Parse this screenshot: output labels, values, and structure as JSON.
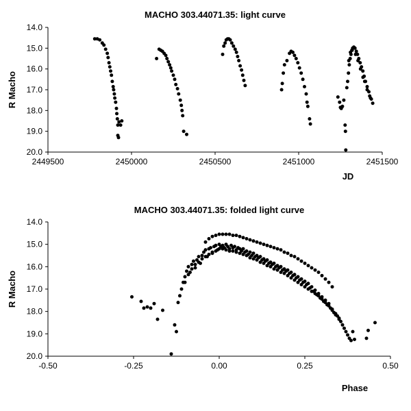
{
  "chart_data": [
    {
      "type": "scatter",
      "title": "MACHO 303.44071.35: light curve",
      "xlabel": "JD",
      "ylabel": "R Macho",
      "xlim": [
        2449500,
        2451500
      ],
      "ylim": [
        14.0,
        20.0
      ],
      "y_inverted": true,
      "x_ticks": [
        "2449500",
        "2450000",
        "2450500",
        "2451000",
        "2451500"
      ],
      "y_ticks": [
        "14.0",
        "15.0",
        "16.0",
        "17.0",
        "18.0",
        "19.0",
        "20.0"
      ],
      "grid": false,
      "legend": "none",
      "marker_color": "#000000",
      "points": [
        [
          2449780,
          14.55
        ],
        [
          2449795,
          14.55
        ],
        [
          2449810,
          14.6
        ],
        [
          2449825,
          14.75
        ],
        [
          2449835,
          14.85
        ],
        [
          2449845,
          15.05
        ],
        [
          2449855,
          15.25
        ],
        [
          2449860,
          15.45
        ],
        [
          2449865,
          15.7
        ],
        [
          2449870,
          15.9
        ],
        [
          2449875,
          16.1
        ],
        [
          2449880,
          16.3
        ],
        [
          2449885,
          16.6
        ],
        [
          2449890,
          16.85
        ],
        [
          2449893,
          17.0
        ],
        [
          2449897,
          17.2
        ],
        [
          2449900,
          17.4
        ],
        [
          2449905,
          17.6
        ],
        [
          2449910,
          17.9
        ],
        [
          2449912,
          18.15
        ],
        [
          2449915,
          18.4
        ],
        [
          2449918,
          18.7
        ],
        [
          2449925,
          18.55
        ],
        [
          2449935,
          18.7
        ],
        [
          2449942,
          18.5
        ],
        [
          2449918,
          19.2
        ],
        [
          2449922,
          19.3
        ],
        [
          2450150,
          15.5
        ],
        [
          2450165,
          15.05
        ],
        [
          2450175,
          15.1
        ],
        [
          2450185,
          15.15
        ],
        [
          2450195,
          15.25
        ],
        [
          2450205,
          15.35
        ],
        [
          2450212,
          15.5
        ],
        [
          2450220,
          15.65
        ],
        [
          2450228,
          15.8
        ],
        [
          2450235,
          15.95
        ],
        [
          2450240,
          16.1
        ],
        [
          2450250,
          16.3
        ],
        [
          2450258,
          16.5
        ],
        [
          2450265,
          16.75
        ],
        [
          2450275,
          16.95
        ],
        [
          2450282,
          17.2
        ],
        [
          2450292,
          17.5
        ],
        [
          2450298,
          17.75
        ],
        [
          2450302,
          18.0
        ],
        [
          2450306,
          18.25
        ],
        [
          2450312,
          19.0
        ],
        [
          2450330,
          19.15
        ],
        [
          2450545,
          15.3
        ],
        [
          2450552,
          14.9
        ],
        [
          2450560,
          14.75
        ],
        [
          2450567,
          14.6
        ],
        [
          2450575,
          14.55
        ],
        [
          2450582,
          14.55
        ],
        [
          2450590,
          14.6
        ],
        [
          2450600,
          14.75
        ],
        [
          2450610,
          14.9
        ],
        [
          2450620,
          15.05
        ],
        [
          2450628,
          15.2
        ],
        [
          2450635,
          15.4
        ],
        [
          2450642,
          15.6
        ],
        [
          2450650,
          15.85
        ],
        [
          2450658,
          16.05
        ],
        [
          2450665,
          16.3
        ],
        [
          2450672,
          16.55
        ],
        [
          2450680,
          16.8
        ],
        [
          2450898,
          17.0
        ],
        [
          2450902,
          16.7
        ],
        [
          2450908,
          16.2
        ],
        [
          2450915,
          15.8
        ],
        [
          2450930,
          15.6
        ],
        [
          2450945,
          15.25
        ],
        [
          2450955,
          15.15
        ],
        [
          2450965,
          15.2
        ],
        [
          2450975,
          15.35
        ],
        [
          2450985,
          15.5
        ],
        [
          2450995,
          15.7
        ],
        [
          2451005,
          15.95
        ],
        [
          2451015,
          16.2
        ],
        [
          2451025,
          16.5
        ],
        [
          2451035,
          16.85
        ],
        [
          2451045,
          17.2
        ],
        [
          2451050,
          17.6
        ],
        [
          2451055,
          17.8
        ],
        [
          2451065,
          18.4
        ],
        [
          2451070,
          18.65
        ],
        [
          2451235,
          17.35
        ],
        [
          2451245,
          17.6
        ],
        [
          2451250,
          17.85
        ],
        [
          2451255,
          17.9
        ],
        [
          2451262,
          17.8
        ],
        [
          2451270,
          17.5
        ],
        [
          2451278,
          18.7
        ],
        [
          2451280,
          19.0
        ],
        [
          2451282,
          19.9
        ],
        [
          2451288,
          16.9
        ],
        [
          2451293,
          16.6
        ],
        [
          2451298,
          16.2
        ],
        [
          2451303,
          15.8
        ],
        [
          2451308,
          15.5
        ],
        [
          2451313,
          15.3
        ],
        [
          2451318,
          15.1
        ],
        [
          2451323,
          15.0
        ],
        [
          2451330,
          14.95
        ],
        [
          2451337,
          15.0
        ],
        [
          2451345,
          15.15
        ],
        [
          2451352,
          15.3
        ],
        [
          2451360,
          15.5
        ],
        [
          2451368,
          15.7
        ],
        [
          2451376,
          15.9
        ],
        [
          2451384,
          16.1
        ],
        [
          2451392,
          16.35
        ],
        [
          2451400,
          16.6
        ],
        [
          2451410,
          16.85
        ],
        [
          2451420,
          17.1
        ],
        [
          2451430,
          17.4
        ],
        [
          2451443,
          17.65
        ],
        [
          2451300,
          15.6
        ],
        [
          2451310,
          15.2
        ],
        [
          2451320,
          15.1
        ],
        [
          2451340,
          15.3
        ],
        [
          2451355,
          15.6
        ],
        [
          2451370,
          16.0
        ],
        [
          2451385,
          16.4
        ],
        [
          2451395,
          16.6
        ],
        [
          2451410,
          17.0
        ],
        [
          2451425,
          17.3
        ],
        [
          2451435,
          17.45
        ]
      ]
    },
    {
      "type": "scatter",
      "title": "MACHO 303.44071.35: folded light curve",
      "xlabel": "Phase",
      "ylabel": "R Macho",
      "xlim": [
        -0.5,
        0.5
      ],
      "ylim": [
        14.0,
        20.0
      ],
      "y_inverted": true,
      "x_ticks": [
        "-0.50",
        "-0.25",
        "0.00",
        "0.25",
        "0.50"
      ],
      "y_ticks": [
        "14.0",
        "15.0",
        "16.0",
        "17.0",
        "18.0",
        "19.0",
        "20.0"
      ],
      "grid": false,
      "legend": "none",
      "marker_color": "#000000",
      "points": [
        [
          -0.255,
          17.35
        ],
        [
          -0.228,
          17.55
        ],
        [
          -0.22,
          17.85
        ],
        [
          -0.21,
          17.8
        ],
        [
          -0.2,
          17.85
        ],
        [
          -0.19,
          17.65
        ],
        [
          -0.18,
          18.35
        ],
        [
          -0.165,
          17.95
        ],
        [
          -0.14,
          19.9
        ],
        [
          -0.13,
          18.6
        ],
        [
          -0.125,
          18.9
        ],
        [
          -0.12,
          17.6
        ],
        [
          -0.115,
          17.3
        ],
        [
          -0.11,
          17.0
        ],
        [
          -0.105,
          16.7
        ],
        [
          -0.1,
          16.45
        ],
        [
          -0.095,
          16.2
        ],
        [
          -0.09,
          16.0
        ],
        [
          -0.085,
          16.25
        ],
        [
          -0.08,
          15.9
        ],
        [
          -0.075,
          15.75
        ],
        [
          -0.07,
          16.05
        ],
        [
          -0.065,
          15.7
        ],
        [
          -0.06,
          15.55
        ],
        [
          -0.055,
          15.85
        ],
        [
          -0.05,
          15.5
        ],
        [
          -0.045,
          15.35
        ],
        [
          -0.04,
          15.25
        ],
        [
          -0.035,
          15.55
        ],
        [
          -0.03,
          15.2
        ],
        [
          -0.025,
          15.15
        ],
        [
          -0.02,
          15.4
        ],
        [
          -0.015,
          15.1
        ],
        [
          -0.01,
          15.05
        ],
        [
          -0.005,
          15.25
        ],
        [
          0.0,
          15.0
        ],
        [
          0.005,
          15.1
        ],
        [
          0.01,
          15.05
        ],
        [
          0.015,
          15.15
        ],
        [
          0.02,
          15.0
        ],
        [
          0.025,
          15.1
        ],
        [
          0.03,
          15.2
        ],
        [
          0.035,
          15.05
        ],
        [
          0.04,
          15.15
        ],
        [
          0.045,
          15.1
        ],
        [
          0.05,
          15.25
        ],
        [
          0.055,
          15.15
        ],
        [
          0.06,
          15.2
        ],
        [
          0.065,
          15.3
        ],
        [
          0.07,
          15.2
        ],
        [
          0.075,
          15.35
        ],
        [
          0.08,
          15.3
        ],
        [
          0.085,
          15.45
        ],
        [
          0.09,
          15.35
        ],
        [
          0.095,
          15.5
        ],
        [
          0.1,
          15.4
        ],
        [
          0.105,
          15.55
        ],
        [
          0.11,
          15.5
        ],
        [
          0.115,
          15.6
        ],
        [
          0.12,
          15.55
        ],
        [
          0.125,
          15.7
        ],
        [
          0.13,
          15.65
        ],
        [
          0.135,
          15.75
        ],
        [
          0.14,
          15.7
        ],
        [
          0.145,
          15.85
        ],
        [
          0.15,
          15.8
        ],
        [
          0.155,
          15.9
        ],
        [
          0.16,
          15.85
        ],
        [
          0.165,
          16.0
        ],
        [
          0.17,
          15.95
        ],
        [
          0.175,
          16.05
        ],
        [
          0.18,
          16.0
        ],
        [
          0.185,
          16.15
        ],
        [
          0.19,
          16.1
        ],
        [
          0.195,
          16.2
        ],
        [
          0.2,
          16.15
        ],
        [
          0.205,
          16.3
        ],
        [
          0.21,
          16.25
        ],
        [
          0.215,
          16.4
        ],
        [
          0.22,
          16.35
        ],
        [
          0.225,
          16.5
        ],
        [
          0.23,
          16.45
        ],
        [
          0.235,
          16.6
        ],
        [
          0.24,
          16.55
        ],
        [
          0.245,
          16.7
        ],
        [
          0.25,
          16.65
        ],
        [
          0.255,
          16.8
        ],
        [
          0.26,
          16.75
        ],
        [
          0.265,
          16.95
        ],
        [
          0.27,
          16.9
        ],
        [
          0.275,
          17.1
        ],
        [
          0.28,
          17.05
        ],
        [
          0.285,
          17.25
        ],
        [
          0.29,
          17.2
        ],
        [
          0.295,
          17.4
        ],
        [
          0.3,
          17.35
        ],
        [
          0.305,
          17.55
        ],
        [
          0.31,
          17.5
        ],
        [
          0.315,
          17.7
        ],
        [
          0.32,
          17.65
        ],
        [
          0.325,
          17.85
        ],
        [
          0.33,
          17.9
        ],
        [
          0.335,
          18.05
        ],
        [
          0.34,
          18.1
        ],
        [
          0.345,
          18.2
        ],
        [
          0.35,
          18.3
        ],
        [
          0.355,
          18.45
        ],
        [
          0.36,
          18.6
        ],
        [
          0.365,
          18.75
        ],
        [
          0.37,
          18.9
        ],
        [
          0.375,
          19.05
        ],
        [
          0.38,
          19.2
        ],
        [
          0.385,
          19.3
        ],
        [
          0.39,
          18.9
        ],
        [
          0.395,
          19.25
        ],
        [
          0.43,
          19.2
        ],
        [
          0.435,
          18.85
        ],
        [
          0.455,
          18.5
        ],
        [
          -0.04,
          14.9
        ],
        [
          -0.03,
          14.75
        ],
        [
          -0.02,
          14.65
        ],
        [
          -0.01,
          14.6
        ],
        [
          0.0,
          14.55
        ],
        [
          0.01,
          14.55
        ],
        [
          0.02,
          14.55
        ],
        [
          0.03,
          14.55
        ],
        [
          0.04,
          14.6
        ],
        [
          0.05,
          14.6
        ],
        [
          0.06,
          14.65
        ],
        [
          0.07,
          14.7
        ],
        [
          0.08,
          14.75
        ],
        [
          0.09,
          14.8
        ],
        [
          0.1,
          14.85
        ],
        [
          0.11,
          14.9
        ],
        [
          0.12,
          14.95
        ],
        [
          0.13,
          15.0
        ],
        [
          0.14,
          15.05
        ],
        [
          0.15,
          15.1
        ],
        [
          0.16,
          15.15
        ],
        [
          0.17,
          15.2
        ],
        [
          0.18,
          15.25
        ],
        [
          0.19,
          15.35
        ],
        [
          0.2,
          15.4
        ],
        [
          0.21,
          15.5
        ],
        [
          0.22,
          15.55
        ],
        [
          0.23,
          15.65
        ],
        [
          0.24,
          15.75
        ],
        [
          0.25,
          15.85
        ],
        [
          0.26,
          15.95
        ],
        [
          0.27,
          16.05
        ],
        [
          0.28,
          16.15
        ],
        [
          0.29,
          16.25
        ],
        [
          0.3,
          16.4
        ],
        [
          0.31,
          16.55
        ],
        [
          0.32,
          16.7
        ],
        [
          0.33,
          16.9
        ],
        [
          -0.1,
          16.7
        ],
        [
          -0.09,
          16.35
        ],
        [
          -0.08,
          16.1
        ],
        [
          -0.07,
          15.9
        ],
        [
          -0.06,
          15.8
        ],
        [
          -0.05,
          15.65
        ],
        [
          -0.04,
          15.55
        ],
        [
          -0.03,
          15.45
        ],
        [
          -0.02,
          15.35
        ],
        [
          -0.01,
          15.3
        ],
        [
          0.0,
          15.2
        ],
        [
          0.01,
          15.2
        ],
        [
          0.02,
          15.25
        ],
        [
          0.03,
          15.3
        ],
        [
          0.04,
          15.3
        ],
        [
          0.05,
          15.35
        ],
        [
          0.06,
          15.4
        ],
        [
          0.07,
          15.45
        ],
        [
          0.08,
          15.5
        ],
        [
          0.09,
          15.6
        ],
        [
          0.1,
          15.65
        ],
        [
          0.11,
          15.7
        ],
        [
          0.12,
          15.8
        ],
        [
          0.13,
          15.85
        ],
        [
          0.14,
          15.95
        ],
        [
          0.15,
          16.0
        ],
        [
          0.16,
          16.1
        ],
        [
          0.17,
          16.15
        ],
        [
          0.18,
          16.25
        ],
        [
          0.19,
          16.3
        ],
        [
          0.2,
          16.4
        ],
        [
          0.21,
          16.5
        ],
        [
          0.22,
          16.6
        ],
        [
          0.23,
          16.7
        ],
        [
          0.24,
          16.8
        ],
        [
          0.25,
          16.9
        ],
        [
          0.26,
          17.0
        ],
        [
          0.27,
          17.1
        ],
        [
          0.28,
          17.2
        ],
        [
          0.29,
          17.3
        ],
        [
          0.3,
          17.45
        ],
        [
          0.31,
          17.6
        ],
        [
          0.32,
          17.75
        ],
        [
          0.33,
          17.95
        ],
        [
          0.34,
          18.15
        ],
        [
          0.35,
          18.35
        ]
      ]
    }
  ]
}
